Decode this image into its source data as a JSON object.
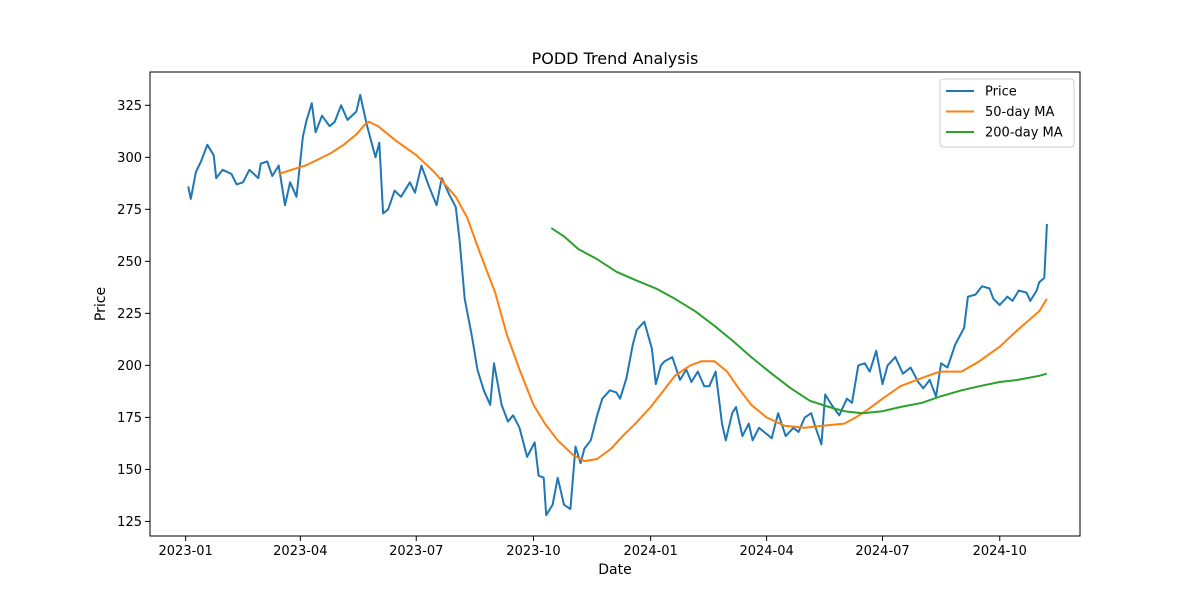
{
  "chart_data": {
    "type": "line",
    "title": "PODD Trend Analysis",
    "xlabel": "Date",
    "ylabel": "Price",
    "xlim": [
      "2022-12-04",
      "2024-12-03"
    ],
    "ylim": [
      118,
      341
    ],
    "x_ticks": [
      "2023-01-01",
      "2023-04-01",
      "2023-07-01",
      "2023-10-01",
      "2024-01-01",
      "2024-04-01",
      "2024-07-01",
      "2024-10-01"
    ],
    "x_tick_labels": [
      "2023-01",
      "2023-04",
      "2023-07",
      "2023-10",
      "2024-01",
      "2024-04",
      "2024-07",
      "2024-10"
    ],
    "y_ticks": [
      125,
      150,
      175,
      200,
      225,
      250,
      275,
      300,
      325
    ],
    "y_tick_labels": [
      "125",
      "150",
      "175",
      "200",
      "225",
      "250",
      "275",
      "300",
      "325"
    ],
    "grid": false,
    "legend": {
      "position": "top-right",
      "entries": [
        "Price",
        "50-day MA",
        "200-day MA"
      ]
    },
    "series": [
      {
        "name": "Price",
        "color": "#1f77b4",
        "points": [
          [
            "2023-01-03",
            286
          ],
          [
            "2023-01-05",
            280
          ],
          [
            "2023-01-09",
            293
          ],
          [
            "2023-01-13",
            298
          ],
          [
            "2023-01-18",
            306
          ],
          [
            "2023-01-23",
            301
          ],
          [
            "2023-01-25",
            290
          ],
          [
            "2023-01-30",
            294
          ],
          [
            "2023-02-06",
            292
          ],
          [
            "2023-02-10",
            287
          ],
          [
            "2023-02-15",
            288
          ],
          [
            "2023-02-20",
            294
          ],
          [
            "2023-02-27",
            290
          ],
          [
            "2023-03-01",
            297
          ],
          [
            "2023-03-06",
            298
          ],
          [
            "2023-03-10",
            291
          ],
          [
            "2023-03-15",
            296
          ],
          [
            "2023-03-20",
            277
          ],
          [
            "2023-03-24",
            288
          ],
          [
            "2023-03-29",
            281
          ],
          [
            "2023-04-03",
            310
          ],
          [
            "2023-04-06",
            318
          ],
          [
            "2023-04-10",
            326
          ],
          [
            "2023-04-13",
            312
          ],
          [
            "2023-04-18",
            320
          ],
          [
            "2023-04-24",
            315
          ],
          [
            "2023-04-28",
            317
          ],
          [
            "2023-05-03",
            325
          ],
          [
            "2023-05-08",
            318
          ],
          [
            "2023-05-15",
            322
          ],
          [
            "2023-05-18",
            330
          ],
          [
            "2023-05-23",
            316
          ],
          [
            "2023-05-30",
            300
          ],
          [
            "2023-06-02",
            307
          ],
          [
            "2023-06-05",
            273
          ],
          [
            "2023-06-09",
            275
          ],
          [
            "2023-06-14",
            284
          ],
          [
            "2023-06-19",
            281
          ],
          [
            "2023-06-26",
            288
          ],
          [
            "2023-06-30",
            283
          ],
          [
            "2023-07-05",
            296
          ],
          [
            "2023-07-11",
            286
          ],
          [
            "2023-07-17",
            277
          ],
          [
            "2023-07-21",
            290
          ],
          [
            "2023-07-27",
            282
          ],
          [
            "2023-08-01",
            276
          ],
          [
            "2023-08-04",
            260
          ],
          [
            "2023-08-08",
            232
          ],
          [
            "2023-08-14",
            213
          ],
          [
            "2023-08-18",
            198
          ],
          [
            "2023-08-23",
            188
          ],
          [
            "2023-08-28",
            181
          ],
          [
            "2023-08-31",
            201
          ],
          [
            "2023-09-06",
            181
          ],
          [
            "2023-09-11",
            173
          ],
          [
            "2023-09-15",
            176
          ],
          [
            "2023-09-20",
            170
          ],
          [
            "2023-09-26",
            156
          ],
          [
            "2023-10-02",
            163
          ],
          [
            "2023-10-05",
            147
          ],
          [
            "2023-10-09",
            146
          ],
          [
            "2023-10-11",
            128
          ],
          [
            "2023-10-16",
            133
          ],
          [
            "2023-10-20",
            146
          ],
          [
            "2023-10-25",
            133
          ],
          [
            "2023-10-30",
            131
          ],
          [
            "2023-11-03",
            161
          ],
          [
            "2023-11-07",
            153
          ],
          [
            "2023-11-10",
            160
          ],
          [
            "2023-11-15",
            164
          ],
          [
            "2023-11-20",
            176
          ],
          [
            "2023-11-24",
            184
          ],
          [
            "2023-11-30",
            188
          ],
          [
            "2023-12-05",
            187
          ],
          [
            "2023-12-08",
            184
          ],
          [
            "2023-12-13",
            194
          ],
          [
            "2023-12-18",
            210
          ],
          [
            "2023-12-21",
            217
          ],
          [
            "2023-12-27",
            221
          ],
          [
            "2024-01-02",
            208
          ],
          [
            "2024-01-05",
            191
          ],
          [
            "2024-01-09",
            200
          ],
          [
            "2024-01-12",
            202
          ],
          [
            "2024-01-18",
            204
          ],
          [
            "2024-01-24",
            193
          ],
          [
            "2024-01-29",
            198
          ],
          [
            "2024-02-02",
            192
          ],
          [
            "2024-02-07",
            197
          ],
          [
            "2024-02-12",
            190
          ],
          [
            "2024-02-16",
            190
          ],
          [
            "2024-02-21",
            197
          ],
          [
            "2024-02-26",
            172
          ],
          [
            "2024-02-29",
            164
          ],
          [
            "2024-03-05",
            177
          ],
          [
            "2024-03-08",
            180
          ],
          [
            "2024-03-13",
            166
          ],
          [
            "2024-03-18",
            172
          ],
          [
            "2024-03-21",
            164
          ],
          [
            "2024-03-26",
            170
          ],
          [
            "2024-04-01",
            167
          ],
          [
            "2024-04-05",
            165
          ],
          [
            "2024-04-10",
            177
          ],
          [
            "2024-04-16",
            166
          ],
          [
            "2024-04-22",
            170
          ],
          [
            "2024-04-26",
            168
          ],
          [
            "2024-05-01",
            175
          ],
          [
            "2024-05-06",
            177
          ],
          [
            "2024-05-09",
            171
          ],
          [
            "2024-05-14",
            162
          ],
          [
            "2024-05-17",
            186
          ],
          [
            "2024-05-22",
            181
          ],
          [
            "2024-05-28",
            176
          ],
          [
            "2024-06-03",
            184
          ],
          [
            "2024-06-07",
            182
          ],
          [
            "2024-06-12",
            200
          ],
          [
            "2024-06-17",
            201
          ],
          [
            "2024-06-21",
            197
          ],
          [
            "2024-06-26",
            207
          ],
          [
            "2024-07-01",
            191
          ],
          [
            "2024-07-05",
            200
          ],
          [
            "2024-07-11",
            204
          ],
          [
            "2024-07-17",
            196
          ],
          [
            "2024-07-23",
            199
          ],
          [
            "2024-07-29",
            192
          ],
          [
            "2024-08-02",
            189
          ],
          [
            "2024-08-07",
            193
          ],
          [
            "2024-08-12",
            185
          ],
          [
            "2024-08-16",
            201
          ],
          [
            "2024-08-21",
            199
          ],
          [
            "2024-08-27",
            210
          ],
          [
            "2024-09-03",
            218
          ],
          [
            "2024-09-06",
            233
          ],
          [
            "2024-09-12",
            234
          ],
          [
            "2024-09-17",
            238
          ],
          [
            "2024-09-23",
            237
          ],
          [
            "2024-09-26",
            232
          ],
          [
            "2024-10-01",
            229
          ],
          [
            "2024-10-07",
            233
          ],
          [
            "2024-10-11",
            231
          ],
          [
            "2024-10-16",
            236
          ],
          [
            "2024-10-22",
            235
          ],
          [
            "2024-10-25",
            231
          ],
          [
            "2024-10-30",
            236
          ],
          [
            "2024-11-01",
            240
          ],
          [
            "2024-11-05",
            242
          ],
          [
            "2024-11-07",
            268
          ]
        ]
      },
      {
        "name": "50-day MA",
        "color": "#ff7f0e",
        "points": [
          [
            "2023-03-15",
            292
          ],
          [
            "2023-03-25",
            294
          ],
          [
            "2023-04-05",
            296
          ],
          [
            "2023-04-15",
            299
          ],
          [
            "2023-04-25",
            302
          ],
          [
            "2023-05-05",
            306
          ],
          [
            "2023-05-15",
            311
          ],
          [
            "2023-05-22",
            316
          ],
          [
            "2023-05-25",
            317
          ],
          [
            "2023-06-01",
            315
          ],
          [
            "2023-06-15",
            308
          ],
          [
            "2023-07-01",
            301
          ],
          [
            "2023-07-15",
            293
          ],
          [
            "2023-08-01",
            281
          ],
          [
            "2023-08-10",
            271
          ],
          [
            "2023-08-20",
            254
          ],
          [
            "2023-09-01",
            235
          ],
          [
            "2023-09-10",
            215
          ],
          [
            "2023-09-20",
            198
          ],
          [
            "2023-10-01",
            181
          ],
          [
            "2023-10-10",
            172
          ],
          [
            "2023-10-20",
            164
          ],
          [
            "2023-11-01",
            157
          ],
          [
            "2023-11-10",
            154
          ],
          [
            "2023-11-20",
            155
          ],
          [
            "2023-12-01",
            160
          ],
          [
            "2023-12-10",
            166
          ],
          [
            "2023-12-20",
            172
          ],
          [
            "2024-01-01",
            180
          ],
          [
            "2024-01-10",
            187
          ],
          [
            "2024-01-20",
            195
          ],
          [
            "2024-02-01",
            200
          ],
          [
            "2024-02-10",
            202
          ],
          [
            "2024-02-20",
            202
          ],
          [
            "2024-03-01",
            197
          ],
          [
            "2024-03-10",
            189
          ],
          [
            "2024-03-20",
            181
          ],
          [
            "2024-04-01",
            175
          ],
          [
            "2024-04-15",
            171
          ],
          [
            "2024-05-01",
            170
          ],
          [
            "2024-05-15",
            171
          ],
          [
            "2024-06-01",
            172
          ],
          [
            "2024-06-10",
            175
          ],
          [
            "2024-06-20",
            179
          ],
          [
            "2024-07-01",
            184
          ],
          [
            "2024-07-15",
            190
          ],
          [
            "2024-08-01",
            194
          ],
          [
            "2024-08-15",
            197
          ],
          [
            "2024-09-01",
            197
          ],
          [
            "2024-09-15",
            202
          ],
          [
            "2024-10-01",
            209
          ],
          [
            "2024-10-15",
            217
          ],
          [
            "2024-11-01",
            226
          ],
          [
            "2024-11-07",
            232
          ]
        ]
      },
      {
        "name": "200-day MA",
        "color": "#2ca02c",
        "points": [
          [
            "2023-10-15",
            266
          ],
          [
            "2023-10-25",
            262
          ],
          [
            "2023-11-05",
            256
          ],
          [
            "2023-11-20",
            251
          ],
          [
            "2023-12-05",
            245
          ],
          [
            "2023-12-20",
            241
          ],
          [
            "2024-01-05",
            237
          ],
          [
            "2024-01-20",
            232
          ],
          [
            "2024-02-05",
            226
          ],
          [
            "2024-02-20",
            219
          ],
          [
            "2024-03-05",
            212
          ],
          [
            "2024-03-20",
            204
          ],
          [
            "2024-04-05",
            196
          ],
          [
            "2024-04-20",
            189
          ],
          [
            "2024-05-05",
            183
          ],
          [
            "2024-05-20",
            180
          ],
          [
            "2024-06-01",
            178
          ],
          [
            "2024-06-15",
            177
          ],
          [
            "2024-07-01",
            178
          ],
          [
            "2024-07-15",
            180
          ],
          [
            "2024-08-01",
            182
          ],
          [
            "2024-08-15",
            185
          ],
          [
            "2024-09-01",
            188
          ],
          [
            "2024-09-15",
            190
          ],
          [
            "2024-10-01",
            192
          ],
          [
            "2024-10-15",
            193
          ],
          [
            "2024-11-01",
            195
          ],
          [
            "2024-11-07",
            196
          ]
        ]
      }
    ]
  }
}
